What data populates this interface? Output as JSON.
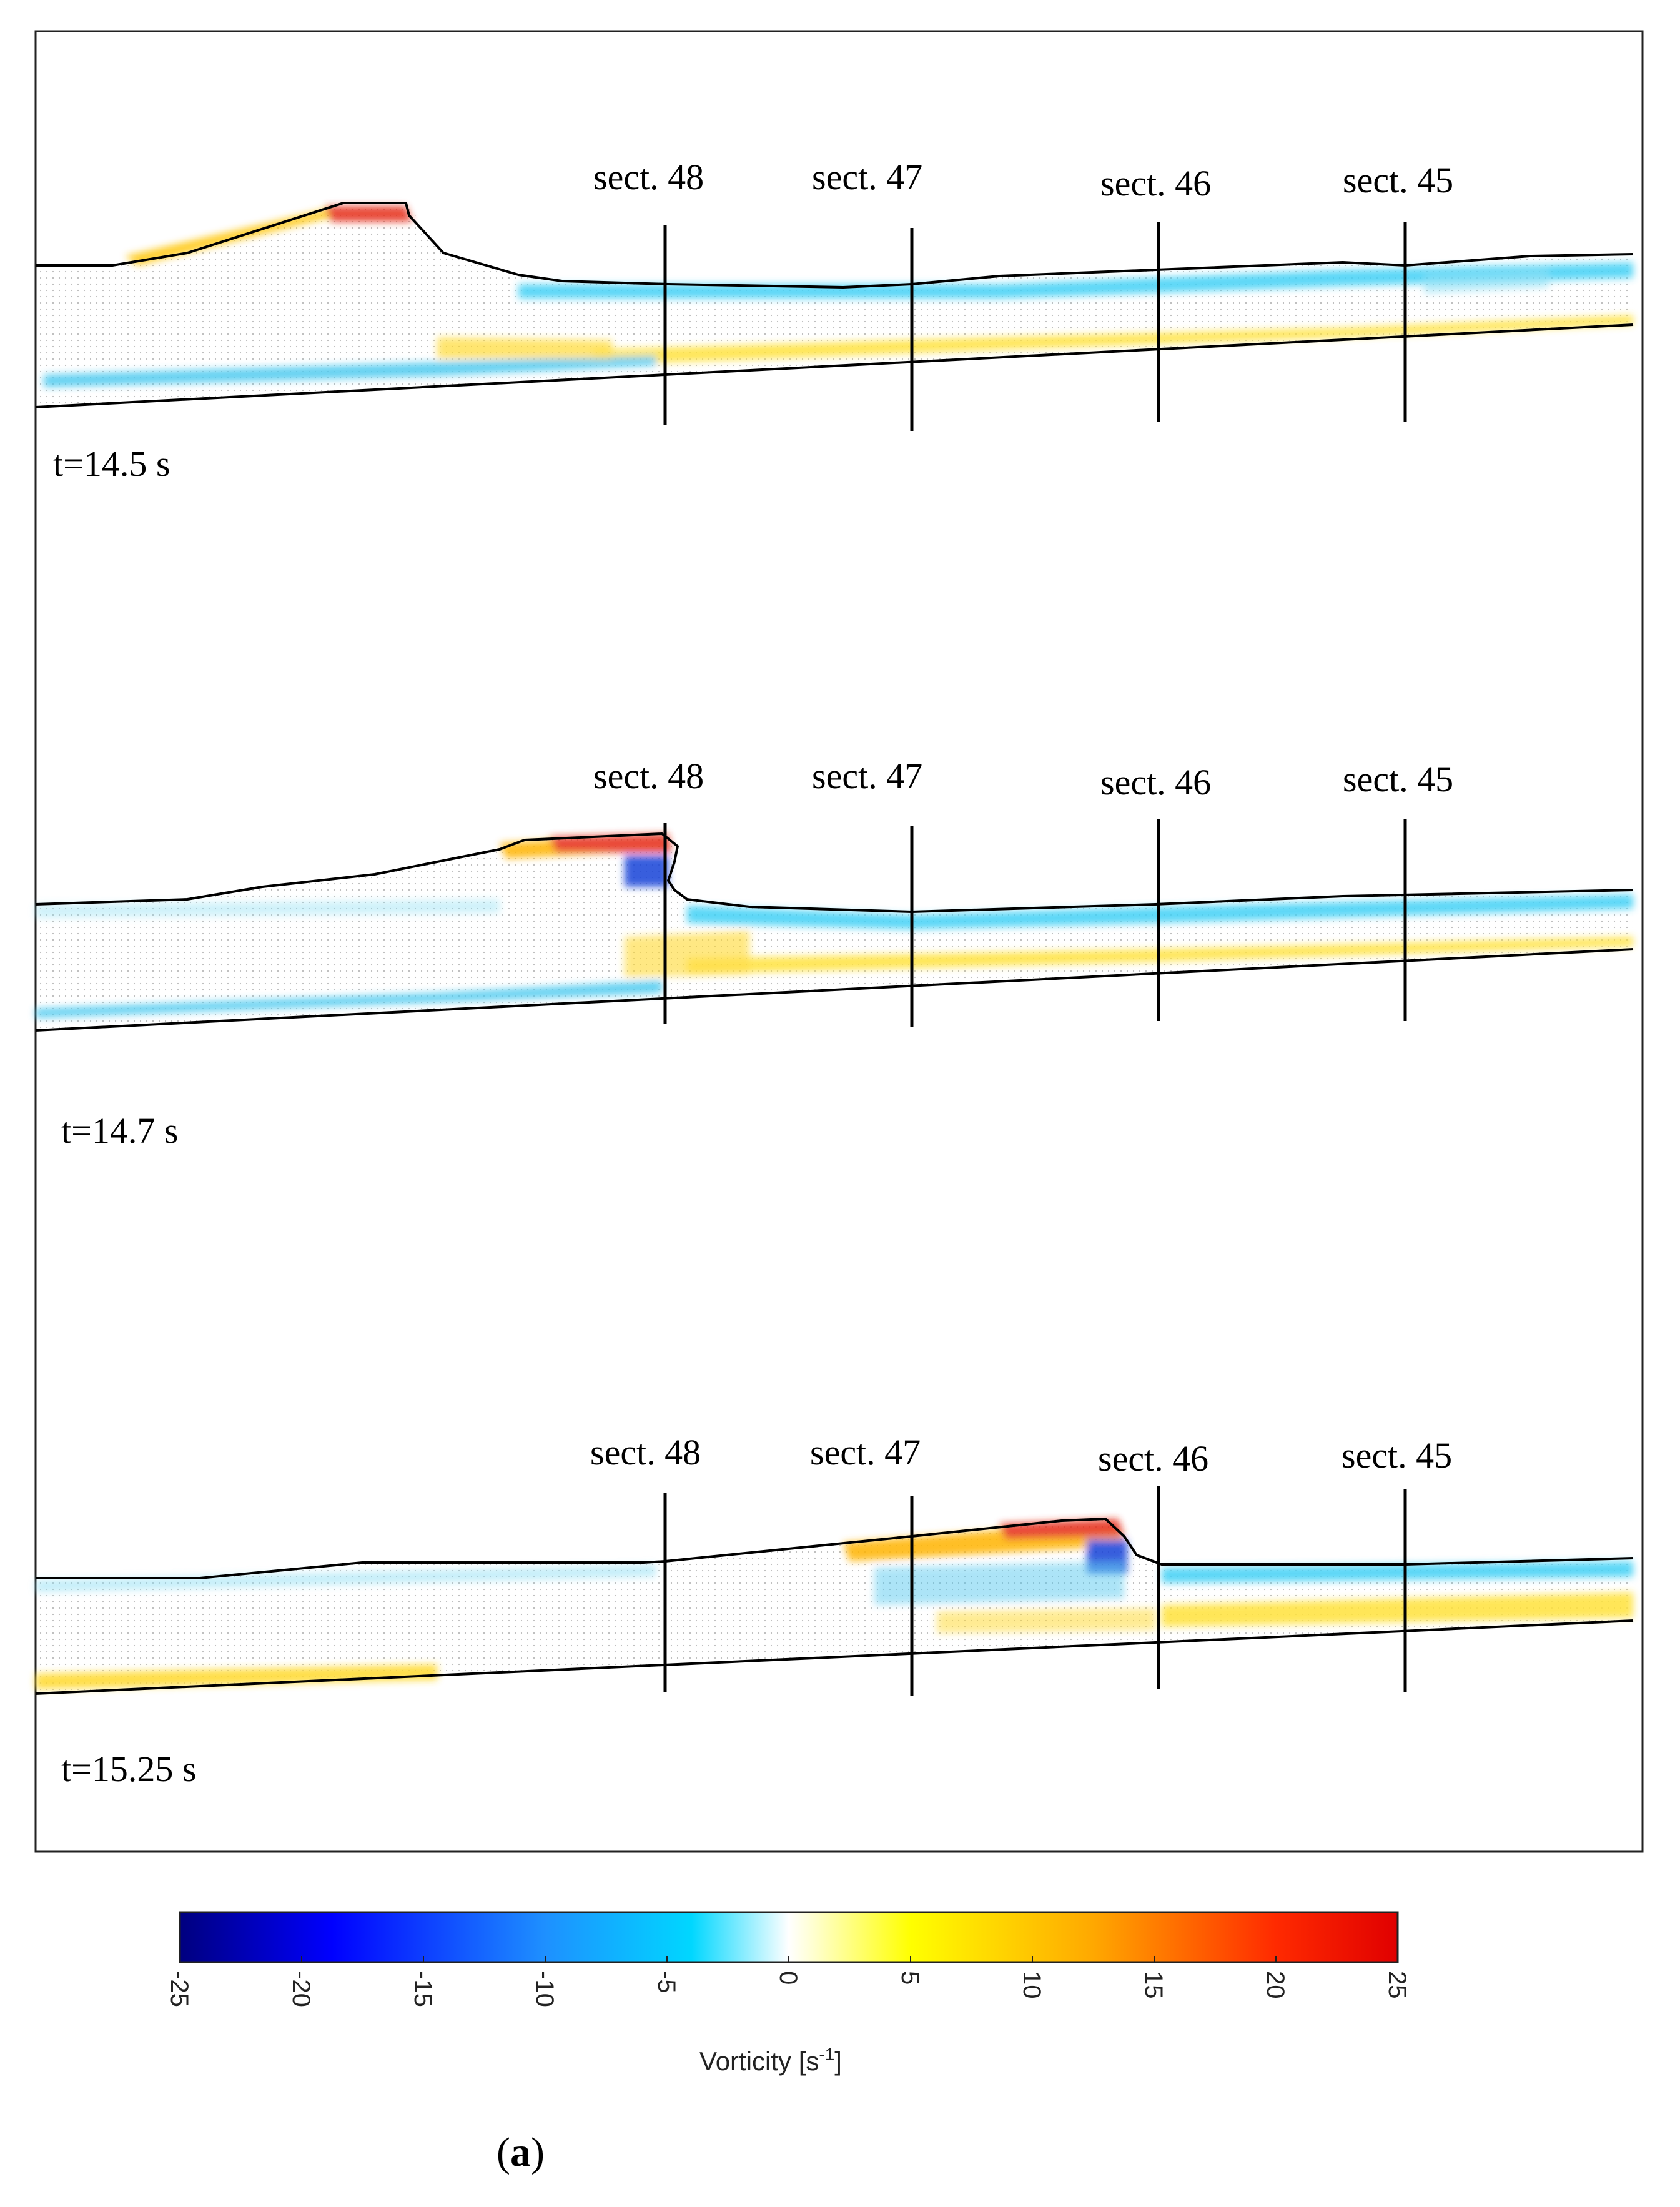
{
  "panels": [
    {
      "time_label": "t=14.5 s",
      "sections": [
        {
          "label": "sect. 48"
        },
        {
          "label": "sect. 47"
        },
        {
          "label": "sect. 46"
        },
        {
          "label": "sect. 45"
        }
      ]
    },
    {
      "time_label": "t=14.7 s",
      "sections": [
        {
          "label": "sect. 48"
        },
        {
          "label": "sect. 47"
        },
        {
          "label": "sect. 46"
        },
        {
          "label": "sect. 45"
        }
      ]
    },
    {
      "time_label": "t=15.25 s",
      "sections": [
        {
          "label": "sect. 48"
        },
        {
          "label": "sect. 47"
        },
        {
          "label": "sect. 46"
        },
        {
          "label": "sect. 45"
        }
      ]
    }
  ],
  "colorbar": {
    "title": "Vorticity [s",
    "title_sup": "-1",
    "title_end": "]",
    "ticks": [
      "-25",
      "-20",
      "-15",
      "-10",
      "-5",
      "0",
      "5",
      "10",
      "15",
      "20",
      "25"
    ],
    "min": -25,
    "max": 25,
    "colors": [
      "#00007f",
      "#0000ff",
      "#1e90ff",
      "#00d7ff",
      "#ffffff",
      "#ffff00",
      "#ff9a00",
      "#ff0000",
      "#c80000"
    ]
  },
  "panel_tag": {
    "open": "(",
    "letter": "a",
    "close": ")"
  }
}
